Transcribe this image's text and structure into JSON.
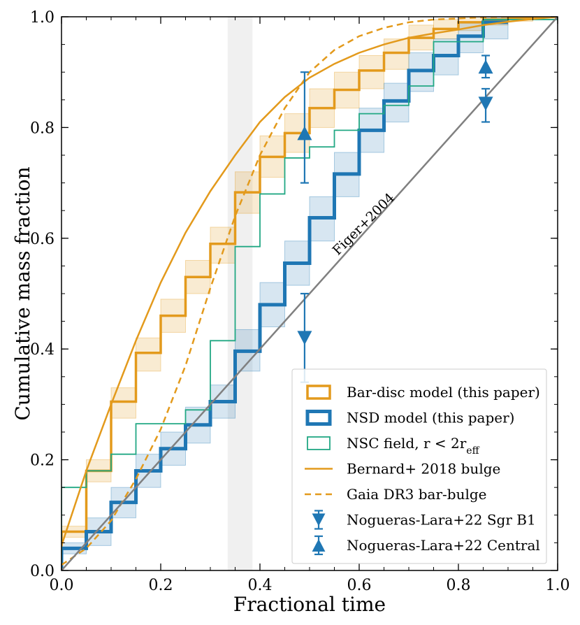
{
  "chart_data": {
    "type": "line",
    "xlabel": "Fractional time",
    "ylabel": "Cumulative mass fraction",
    "xlim": [
      0.0,
      1.0
    ],
    "ylim": [
      0.0,
      1.0
    ],
    "x_ticks": [
      "0.0",
      "0.2",
      "0.4",
      "0.6",
      "0.8",
      "1.0"
    ],
    "y_ticks": [
      "0.0",
      "0.2",
      "0.4",
      "0.6",
      "0.8",
      "1.0"
    ],
    "grid": false,
    "legend_position": "bottom-right",
    "shaded_band": {
      "x_range": [
        0.335,
        0.385
      ],
      "color": "#d9d9d9"
    },
    "colors": {
      "orange": "#e39a1c",
      "blue": "#1f77b4",
      "green": "#22a884",
      "grey": "#808080"
    },
    "annotation": {
      "text": "Figer+2004",
      "x": 0.615,
      "y": 0.62,
      "rotation_deg": 45
    },
    "legend": [
      {
        "label": "Bar-disc model (this paper)",
        "style": "box-orange"
      },
      {
        "label": "NSD model (this paper)",
        "style": "box-blue"
      },
      {
        "label": "NSC field, r < 2r",
        "sub": "eff",
        "style": "box-green"
      },
      {
        "label": "Bernard+ 2018 bulge",
        "style": "line-orange"
      },
      {
        "label": "Gaia DR3 bar-bulge",
        "style": "dash-orange"
      },
      {
        "label": "Nogueras-Lara+22 Sgr B1",
        "style": "tri-down-blue"
      },
      {
        "label": "Nogueras-Lara+22 Central",
        "style": "tri-up-blue"
      }
    ],
    "series": [
      {
        "key": "bar_disc",
        "type": "step",
        "edges": [
          0.0,
          0.05,
          0.1,
          0.15,
          0.2,
          0.25,
          0.3,
          0.35,
          0.4,
          0.45,
          0.5,
          0.55,
          0.6,
          0.65,
          0.7,
          0.75,
          0.8,
          0.85,
          0.9,
          0.95,
          1.0
        ],
        "values": [
          0.07,
          0.18,
          0.305,
          0.393,
          0.46,
          0.53,
          0.59,
          0.683,
          0.747,
          0.79,
          0.835,
          0.868,
          0.903,
          0.935,
          0.962,
          0.978,
          0.99,
          0.995,
          0.998,
          1.0
        ],
        "lower": [
          0.06,
          0.16,
          0.275,
          0.36,
          0.43,
          0.5,
          0.555,
          0.645,
          0.71,
          0.755,
          0.8,
          0.835,
          0.87,
          0.905,
          0.94,
          0.96,
          0.975,
          0.985,
          0.992,
          0.995
        ],
        "upper": [
          0.08,
          0.2,
          0.33,
          0.42,
          0.49,
          0.56,
          0.62,
          0.72,
          0.785,
          0.825,
          0.87,
          0.9,
          0.93,
          0.96,
          0.985,
          0.995,
          1.0,
          1.0,
          1.0,
          1.0
        ]
      },
      {
        "key": "nsd",
        "type": "step",
        "edges": [
          0.0,
          0.05,
          0.1,
          0.15,
          0.2,
          0.25,
          0.3,
          0.35,
          0.4,
          0.45,
          0.5,
          0.55,
          0.6,
          0.65,
          0.7,
          0.75,
          0.8,
          0.85,
          0.9
        ],
        "values": [
          0.04,
          0.07,
          0.123,
          0.18,
          0.22,
          0.263,
          0.305,
          0.396,
          0.48,
          0.555,
          0.637,
          0.716,
          0.795,
          0.848,
          0.903,
          0.93,
          0.965,
          0.99
        ],
        "lower": [
          0.03,
          0.045,
          0.095,
          0.15,
          0.19,
          0.23,
          0.275,
          0.36,
          0.44,
          0.515,
          0.595,
          0.675,
          0.755,
          0.81,
          0.865,
          0.895,
          0.935,
          0.96
        ],
        "upper": [
          0.05,
          0.095,
          0.15,
          0.21,
          0.25,
          0.295,
          0.335,
          0.435,
          0.52,
          0.595,
          0.675,
          0.755,
          0.835,
          0.88,
          0.935,
          0.96,
          0.99,
          1.0
        ]
      },
      {
        "key": "nsc",
        "type": "step",
        "edges": [
          0.0,
          0.05,
          0.1,
          0.15,
          0.25,
          0.3,
          0.35,
          0.4,
          0.45,
          0.5,
          0.55,
          0.6,
          0.65,
          0.7,
          0.75,
          0.85,
          1.0
        ],
        "values": [
          0.15,
          0.18,
          0.21,
          0.265,
          0.29,
          0.415,
          0.585,
          0.68,
          0.745,
          0.765,
          0.795,
          0.825,
          0.84,
          0.875,
          0.955,
          0.995
        ]
      },
      {
        "key": "bernard",
        "type": "curve",
        "x": [
          0.0,
          0.05,
          0.1,
          0.15,
          0.2,
          0.25,
          0.3,
          0.35,
          0.4,
          0.45,
          0.5,
          0.55,
          0.6,
          0.65,
          0.7,
          0.75,
          0.8,
          0.85,
          0.9,
          0.95,
          1.0
        ],
        "y": [
          0.045,
          0.18,
          0.3,
          0.415,
          0.52,
          0.61,
          0.685,
          0.75,
          0.81,
          0.855,
          0.89,
          0.915,
          0.935,
          0.95,
          0.962,
          0.97,
          0.977,
          0.985,
          0.991,
          0.996,
          1.0
        ]
      },
      {
        "key": "gaia",
        "type": "curve",
        "x": [
          0.0,
          0.05,
          0.1,
          0.15,
          0.2,
          0.25,
          0.3,
          0.35,
          0.4,
          0.45,
          0.5,
          0.55,
          0.6,
          0.65,
          0.7,
          0.75,
          0.8,
          0.85,
          0.9,
          0.95,
          1.0
        ],
        "y": [
          0.01,
          0.04,
          0.09,
          0.165,
          0.255,
          0.37,
          0.51,
          0.64,
          0.75,
          0.835,
          0.9,
          0.94,
          0.965,
          0.98,
          0.99,
          0.995,
          0.997,
          0.999,
          1.0,
          1.0,
          1.0
        ]
      },
      {
        "key": "figer",
        "type": "curve",
        "x": [
          0.0,
          1.0
        ],
        "y": [
          0.0,
          1.0
        ]
      }
    ],
    "points": [
      {
        "key": "sgrb1_a",
        "marker": "tri-down",
        "x": 0.49,
        "y": 0.42,
        "yerr_low": 0.34,
        "yerr_high": 0.5
      },
      {
        "key": "sgrb1_b",
        "marker": "tri-down",
        "x": 0.855,
        "y": 0.843,
        "yerr_low": 0.81,
        "yerr_high": 0.87
      },
      {
        "key": "central_a",
        "marker": "tri-up",
        "x": 0.49,
        "y": 0.79,
        "yerr_low": 0.7,
        "yerr_high": 0.9
      },
      {
        "key": "central_b",
        "marker": "tri-up",
        "x": 0.855,
        "y": 0.91,
        "yerr_low": 0.89,
        "yerr_high": 0.93
      }
    ]
  }
}
